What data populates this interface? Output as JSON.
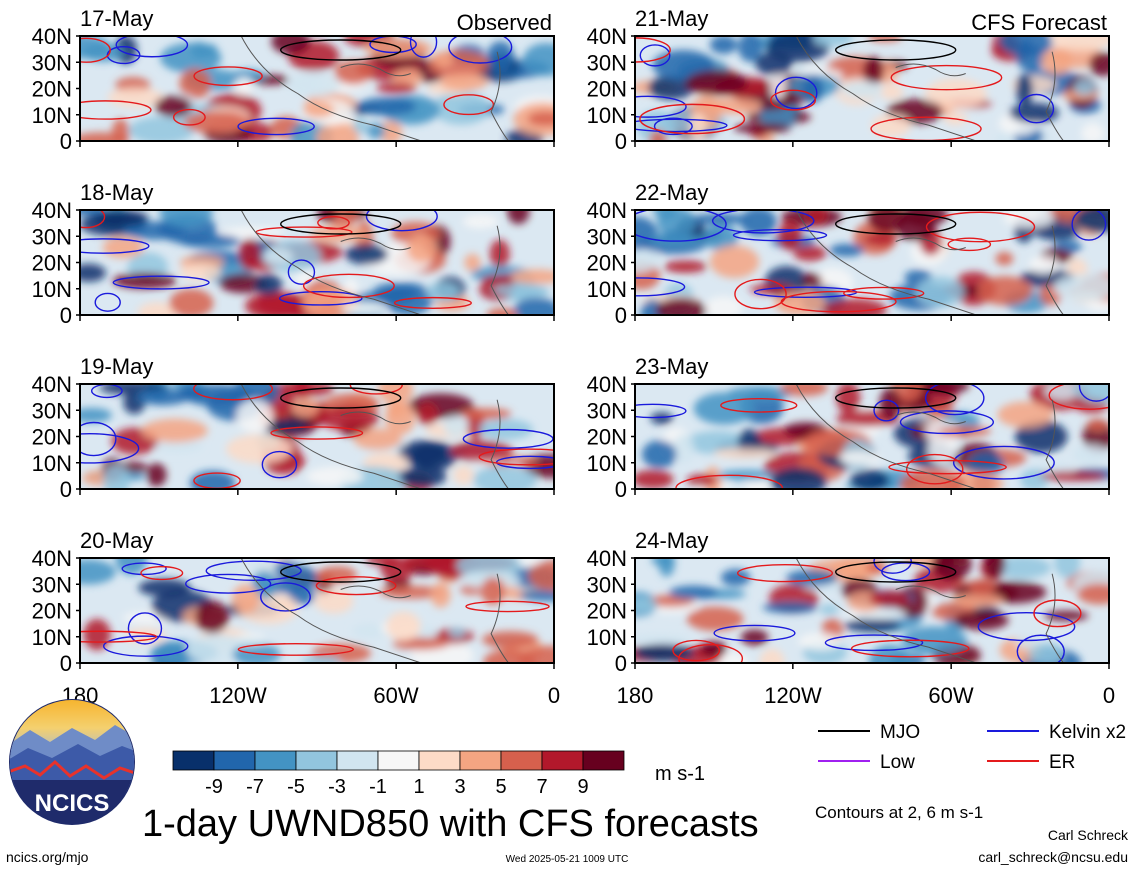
{
  "panels": [
    {
      "date": "17-May",
      "tag": "Observed"
    },
    {
      "date": "18-May",
      "tag": ""
    },
    {
      "date": "19-May",
      "tag": ""
    },
    {
      "date": "20-May",
      "tag": ""
    },
    {
      "date": "21-May",
      "tag": "CFS Forecast"
    },
    {
      "date": "22-May",
      "tag": ""
    },
    {
      "date": "23-May",
      "tag": ""
    },
    {
      "date": "24-May",
      "tag": ""
    }
  ],
  "lat_ticks": [
    "40N",
    "30N",
    "20N",
    "10N",
    "0"
  ],
  "lon_ticks": [
    "180",
    "120W",
    "60W",
    "0"
  ],
  "colorbar": {
    "colors": [
      "#08306b",
      "#2166ac",
      "#4393c3",
      "#92c5de",
      "#d1e5f0",
      "#f7f7f7",
      "#fddbc7",
      "#f4a582",
      "#d6604d",
      "#b2182b",
      "#67001f"
    ],
    "labels": [
      "-9",
      "-7",
      "-5",
      "-3",
      "-1",
      "1",
      "3",
      "5",
      "7",
      "9"
    ],
    "units": "m s-1"
  },
  "legend": [
    {
      "label": "MJO",
      "color": "#000000"
    },
    {
      "label": "Kelvin x2",
      "color": "#1a1adc"
    },
    {
      "label": "Low",
      "color": "#a020f0"
    },
    {
      "label": "ER",
      "color": "#e41a1c"
    }
  ],
  "contours_note": "Contours at 2, 6 m s-1",
  "main_title": "1-day UWND850 with CFS forecasts",
  "logo_text": "NCICS",
  "url": "ncics.org/mjo",
  "timestamp": "Wed 2025-05-21 1009 UTC",
  "author": "Carl Schreck",
  "email": "carl_schreck@ncsu.edu"
}
